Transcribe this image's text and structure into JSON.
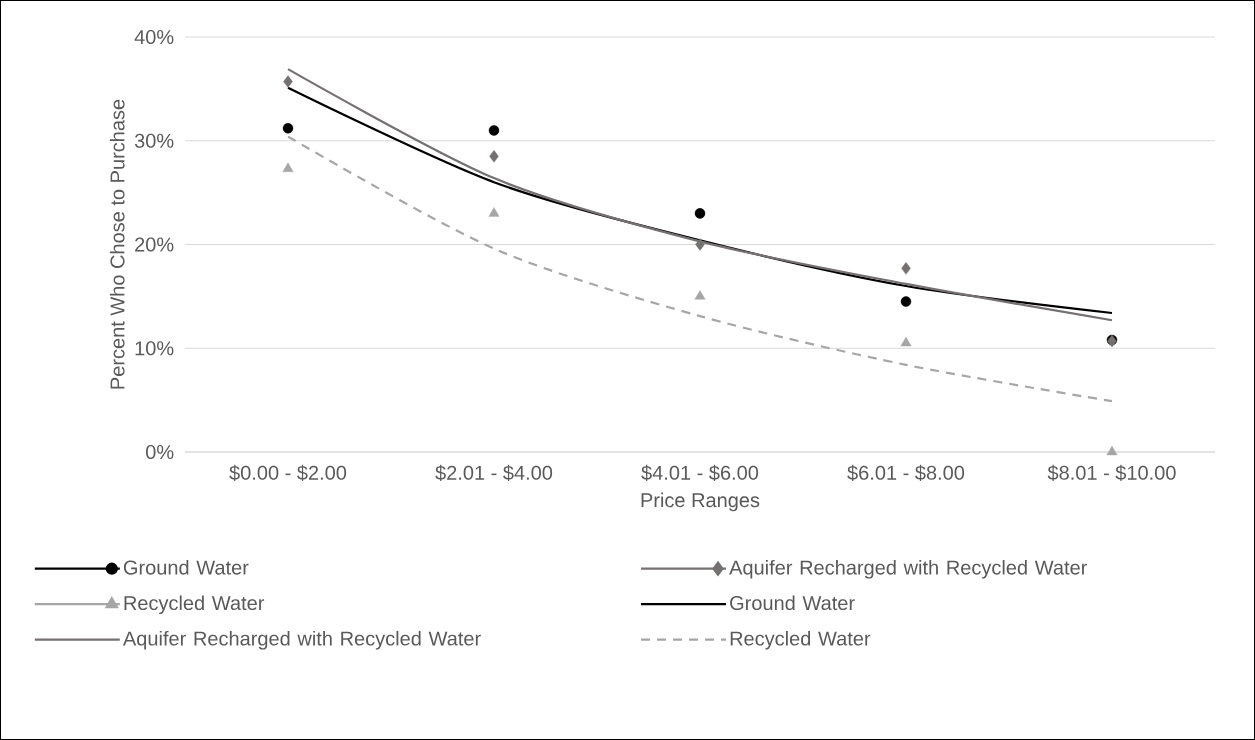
{
  "chart_data": {
    "type": "scatter",
    "categories": [
      "$0.00 - $2.00",
      "$2.01 - $4.00",
      "$4.01 - $6.00",
      "$6.01 - $8.00",
      "$8.01 - $10.00"
    ],
    "xlabel": "Price Ranges",
    "ylabel": "Percent Who Chose to Purchase",
    "ylim": [
      0,
      40
    ],
    "yticks": [
      {
        "value": 0,
        "label": "0%"
      },
      {
        "value": 10,
        "label": "10%"
      },
      {
        "value": 20,
        "label": "20%"
      },
      {
        "value": 30,
        "label": "30%"
      },
      {
        "value": 40,
        "label": "40%"
      }
    ],
    "grid": "y",
    "legend": "bottom",
    "series": [
      {
        "name": "Ground Water",
        "marker": "circle",
        "color": "#000000",
        "values": [
          31.2,
          31.0,
          23.0,
          14.5,
          10.8
        ]
      },
      {
        "name": "Aquifer Recharged with Recycled Water",
        "marker": "diamond",
        "color": "#767171",
        "values": [
          35.7,
          28.5,
          20.0,
          17.7,
          10.7
        ]
      },
      {
        "name": "Recycled Water",
        "marker": "triangle",
        "color": "#a6a6a6",
        "values": [
          27.3,
          23.0,
          15.0,
          10.5,
          0
        ]
      },
      {
        "name": "Ground Water",
        "type": "line",
        "line_style": "solid",
        "color": "#000000",
        "values": [
          35.1,
          26.0,
          20.4,
          16.0,
          13.4
        ]
      },
      {
        "name": "Aquifer Recharged with Recycled Water",
        "type": "line",
        "line_style": "solid",
        "color": "#767171",
        "values": [
          36.9,
          26.4,
          20.3,
          16.2,
          12.7
        ]
      },
      {
        "name": "Recycled Water",
        "type": "line",
        "line_style": "dashed",
        "color": "#a6a6a6",
        "values": [
          30.4,
          19.6,
          13.1,
          8.4,
          4.9
        ]
      }
    ]
  }
}
